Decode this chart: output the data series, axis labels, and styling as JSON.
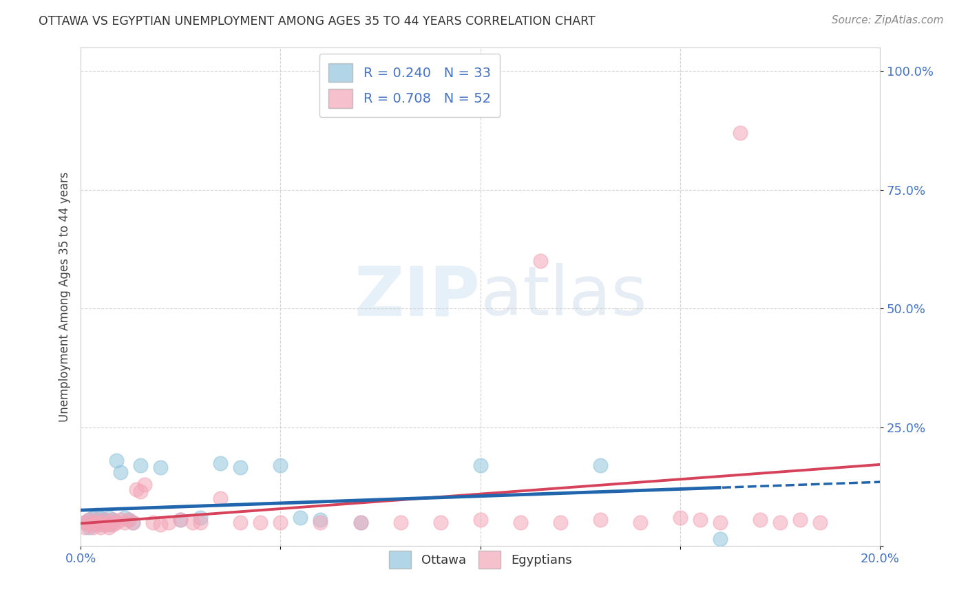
{
  "title": "OTTAWA VS EGYPTIAN UNEMPLOYMENT AMONG AGES 35 TO 44 YEARS CORRELATION CHART",
  "source": "Source: ZipAtlas.com",
  "ylabel": "Unemployment Among Ages 35 to 44 years",
  "xlim": [
    0.0,
    0.2
  ],
  "ylim": [
    0.0,
    1.05
  ],
  "ytick_vals": [
    0.0,
    0.25,
    0.5,
    0.75,
    1.0
  ],
  "ytick_labels": [
    "",
    "25.0%",
    "50.0%",
    "75.0%",
    "100.0%"
  ],
  "xtick_vals": [
    0.0,
    0.05,
    0.1,
    0.15,
    0.2
  ],
  "xtick_labels": [
    "0.0%",
    "",
    "",
    "",
    "20.0%"
  ],
  "ottawa_color": "#92c5de",
  "ottawa_line_color": "#2166ac",
  "egyptian_color": "#f4a6b8",
  "egyptian_line_color": "#d6425a",
  "ottawa_R": 0.24,
  "ottawa_N": 33,
  "egyptian_R": 0.708,
  "egyptian_N": 52,
  "watermark_zip": "ZIP",
  "watermark_atlas": "atlas",
  "background_color": "#ffffff",
  "label_color": "#4472c4",
  "ottawa_x": [
    0.001,
    0.002,
    0.002,
    0.003,
    0.003,
    0.004,
    0.004,
    0.005,
    0.005,
    0.006,
    0.006,
    0.007,
    0.007,
    0.008,
    0.008,
    0.009,
    0.01,
    0.011,
    0.012,
    0.013,
    0.015,
    0.02,
    0.025,
    0.03,
    0.035,
    0.04,
    0.05,
    0.055,
    0.06,
    0.07,
    0.1,
    0.13,
    0.16
  ],
  "ottawa_y": [
    0.05,
    0.04,
    0.055,
    0.045,
    0.06,
    0.05,
    0.065,
    0.045,
    0.06,
    0.05,
    0.055,
    0.045,
    0.06,
    0.055,
    0.05,
    0.18,
    0.155,
    0.06,
    0.055,
    0.05,
    0.17,
    0.165,
    0.055,
    0.06,
    0.175,
    0.165,
    0.17,
    0.06,
    0.055,
    0.05,
    0.17,
    0.17,
    0.015
  ],
  "egyptian_x": [
    0.001,
    0.001,
    0.002,
    0.002,
    0.003,
    0.003,
    0.004,
    0.004,
    0.005,
    0.005,
    0.006,
    0.006,
    0.007,
    0.007,
    0.008,
    0.008,
    0.009,
    0.01,
    0.011,
    0.012,
    0.013,
    0.014,
    0.015,
    0.016,
    0.018,
    0.02,
    0.022,
    0.025,
    0.028,
    0.03,
    0.035,
    0.04,
    0.045,
    0.05,
    0.06,
    0.07,
    0.08,
    0.09,
    0.1,
    0.11,
    0.12,
    0.13,
    0.14,
    0.15,
    0.155,
    0.16,
    0.17,
    0.175,
    0.18,
    0.185,
    0.115,
    0.165
  ],
  "egyptian_y": [
    0.04,
    0.05,
    0.045,
    0.055,
    0.04,
    0.05,
    0.045,
    0.055,
    0.04,
    0.05,
    0.045,
    0.055,
    0.04,
    0.05,
    0.045,
    0.055,
    0.05,
    0.055,
    0.05,
    0.055,
    0.05,
    0.12,
    0.115,
    0.13,
    0.05,
    0.045,
    0.05,
    0.055,
    0.05,
    0.05,
    0.1,
    0.05,
    0.05,
    0.05,
    0.05,
    0.05,
    0.05,
    0.05,
    0.055,
    0.05,
    0.05,
    0.055,
    0.05,
    0.06,
    0.055,
    0.05,
    0.055,
    0.05,
    0.055,
    0.05,
    0.6,
    0.87
  ]
}
